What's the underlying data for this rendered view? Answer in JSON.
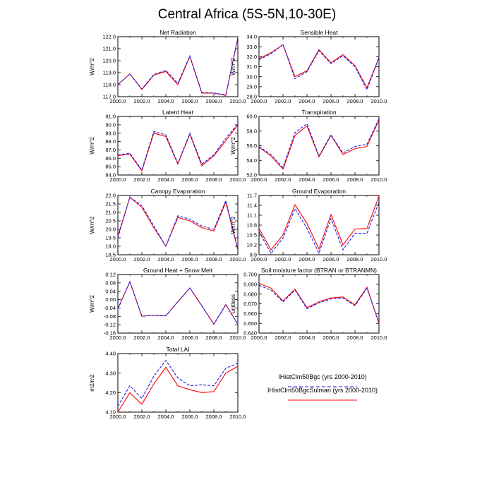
{
  "figure": {
    "title": "Central Africa (5S-5N,10-30E)"
  },
  "legend": {
    "items": [
      {
        "label": "IHistClm50Bgc (yrs 2000-2010)",
        "color": "#1f1fe6",
        "style": "dashed"
      },
      {
        "label": "IHistClm50BgcSulman (yrs 2000-2010)",
        "color": "#ff0000",
        "style": "solid"
      }
    ]
  },
  "chart_data": [
    {
      "type": "line",
      "title": "Net Radiation",
      "ylabel": "W/m^2",
      "x": [
        2000,
        2001,
        2002,
        2003,
        2004,
        2005,
        2006,
        2007,
        2008,
        2009,
        2010
      ],
      "xlim": [
        2000,
        2010
      ],
      "xticks": [
        2000,
        2002,
        2004,
        2006,
        2008,
        2010
      ],
      "xticklabels": [
        "2000.0",
        "2002.0",
        "2004.0",
        "2006.0",
        "2008.0",
        "2010.0"
      ],
      "ylim": [
        117.0,
        122.0
      ],
      "yticks": [
        117,
        118,
        119,
        120,
        121,
        122
      ],
      "yticklabels": [
        "117.0",
        "118.0",
        "119.0",
        "120.0",
        "121.0",
        "122.0"
      ],
      "series": [
        {
          "name": "IHistClm50Bgc (yrs 2000-2010)",
          "color": "#1f1fe6",
          "dash": true,
          "values": [
            118.0,
            118.9,
            117.65,
            118.85,
            119.2,
            118.1,
            120.4,
            117.35,
            117.3,
            117.15,
            121.9
          ]
        },
        {
          "name": "IHistClm50BgcSulman (yrs 2000-2010)",
          "color": "#ff0000",
          "dash": false,
          "values": [
            118.0,
            118.9,
            117.6,
            118.8,
            119.1,
            118.0,
            120.35,
            117.3,
            117.3,
            117.1,
            121.9
          ]
        }
      ]
    },
    {
      "type": "line",
      "title": "Sensible Heat",
      "ylabel": "W/m^2",
      "x": [
        2000,
        2001,
        2002,
        2003,
        2004,
        2005,
        2006,
        2007,
        2008,
        2009,
        2010
      ],
      "xlim": [
        2000,
        2010
      ],
      "xticks": [
        2000,
        2002,
        2004,
        2006,
        2008,
        2010
      ],
      "xticklabels": [
        "2000.0",
        "2002.0",
        "2004.0",
        "2006.0",
        "2008.0",
        "2010.0"
      ],
      "ylim": [
        28.0,
        34.0
      ],
      "yticks": [
        28,
        29,
        30,
        31,
        32,
        33,
        34
      ],
      "yticklabels": [
        "28.0",
        "29.0",
        "30.0",
        "31.0",
        "32.0",
        "33.0",
        "34.0"
      ],
      "series": [
        {
          "name": "IHistClm50Bgc (yrs 2000-2010)",
          "color": "#1f1fe6",
          "dash": true,
          "values": [
            31.7,
            32.3,
            33.2,
            29.8,
            30.5,
            32.6,
            31.3,
            32.1,
            31.0,
            28.7,
            31.9
          ]
        },
        {
          "name": "IHistClm50BgcSulman (yrs 2000-2010)",
          "color": "#ff0000",
          "dash": false,
          "values": [
            31.8,
            32.4,
            33.2,
            30.0,
            30.6,
            32.7,
            31.4,
            32.2,
            31.1,
            28.9,
            31.9
          ]
        }
      ]
    },
    {
      "type": "line",
      "title": "Latent Heat",
      "ylabel": "W/m^2",
      "x": [
        2000,
        2001,
        2002,
        2003,
        2004,
        2005,
        2006,
        2007,
        2008,
        2009,
        2010
      ],
      "xlim": [
        2000,
        2010
      ],
      "xticks": [
        2000,
        2002,
        2004,
        2006,
        2008,
        2010
      ],
      "xticklabels": [
        "2000.0",
        "2002.0",
        "2004.0",
        "2006.0",
        "2008.0",
        "2010.0"
      ],
      "ylim": [
        84.0,
        91.0
      ],
      "yticks": [
        84,
        85,
        86,
        87,
        88,
        89,
        90,
        91
      ],
      "yticklabels": [
        "84.0",
        "85.0",
        "86.0",
        "87.0",
        "88.0",
        "89.0",
        "90.0",
        "91.0"
      ],
      "series": [
        {
          "name": "IHistClm50Bgc (yrs 2000-2010)",
          "color": "#1f1fe6",
          "dash": true,
          "values": [
            86.4,
            86.6,
            84.6,
            89.2,
            88.8,
            85.4,
            89.0,
            85.3,
            86.4,
            88.4,
            90.1
          ]
        },
        {
          "name": "IHistClm50BgcSulman (yrs 2000-2010)",
          "color": "#ff0000",
          "dash": false,
          "values": [
            86.3,
            86.5,
            84.5,
            89.0,
            88.6,
            85.3,
            88.9,
            85.1,
            86.3,
            88.1,
            90.0
          ]
        }
      ]
    },
    {
      "type": "line",
      "title": "Transpiration",
      "ylabel": "W/m^2",
      "x": [
        2000,
        2001,
        2002,
        2003,
        2004,
        2005,
        2006,
        2007,
        2008,
        2009,
        2010
      ],
      "xlim": [
        2000,
        2010
      ],
      "xticks": [
        2000,
        2002,
        2004,
        2006,
        2008,
        2010
      ],
      "xticklabels": [
        "2000.0",
        "2002.0",
        "2004.0",
        "2006.0",
        "2008.0",
        "2010.0"
      ],
      "ylim": [
        52.0,
        60.0
      ],
      "yticks": [
        52,
        54,
        56,
        58,
        60
      ],
      "yticklabels": [
        "52.0",
        "54.0",
        "56.0",
        "58.0",
        "60.0"
      ],
      "series": [
        {
          "name": "IHistClm50Bgc (yrs 2000-2010)",
          "color": "#1f1fe6",
          "dash": true,
          "values": [
            55.9,
            54.8,
            53.0,
            57.8,
            59.0,
            54.6,
            57.5,
            55.0,
            55.9,
            56.2,
            59.7
          ]
        },
        {
          "name": "IHistClm50BgcSulman (yrs 2000-2010)",
          "color": "#ff0000",
          "dash": false,
          "values": [
            55.8,
            54.6,
            52.8,
            57.4,
            58.7,
            54.5,
            57.4,
            54.8,
            55.6,
            55.9,
            59.5
          ]
        }
      ]
    },
    {
      "type": "line",
      "title": "Canopy Evaporation",
      "ylabel": "W/m^2",
      "x": [
        2000,
        2001,
        2002,
        2003,
        2004,
        2005,
        2006,
        2007,
        2008,
        2009,
        2010
      ],
      "xlim": [
        2000,
        2010
      ],
      "xticks": [
        2000,
        2002,
        2004,
        2006,
        2008,
        2010
      ],
      "xticklabels": [
        "2000.0",
        "2002.0",
        "2004.0",
        "2006.0",
        "2008.0",
        "2010.0"
      ],
      "ylim": [
        18.5,
        22.0
      ],
      "yticks": [
        18.5,
        19.0,
        19.5,
        20.0,
        20.5,
        21.0,
        21.5,
        22.0
      ],
      "yticklabels": [
        "18.5",
        "19.0",
        "19.5",
        "20.0",
        "20.5",
        "21.0",
        "21.5",
        "22.0"
      ],
      "series": [
        {
          "name": "IHistClm50Bgc (yrs 2000-2010)",
          "color": "#1f1fe6",
          "dash": true,
          "values": [
            19.5,
            21.9,
            21.4,
            20.2,
            19.0,
            20.8,
            20.6,
            20.2,
            20.0,
            21.7,
            18.8
          ]
        },
        {
          "name": "IHistClm50BgcSulman (yrs 2000-2010)",
          "color": "#ff0000",
          "dash": false,
          "values": [
            19.6,
            21.9,
            21.3,
            20.1,
            19.0,
            20.7,
            20.5,
            20.1,
            19.9,
            21.6,
            18.8
          ]
        }
      ]
    },
    {
      "type": "line",
      "title": "Ground Evaporation",
      "ylabel": "W/m^2",
      "x": [
        2000,
        2001,
        2002,
        2003,
        2004,
        2005,
        2006,
        2007,
        2008,
        2009,
        2010
      ],
      "xlim": [
        2000,
        2010
      ],
      "xticks": [
        2000,
        2002,
        2004,
        2006,
        2008,
        2010
      ],
      "xticklabels": [
        "2000.0",
        "2002.0",
        "2004.0",
        "2006.0",
        "2008.0",
        "2010.0"
      ],
      "ylim": [
        9.9,
        11.7
      ],
      "yticks": [
        9.9,
        10.2,
        10.5,
        10.8,
        11.1,
        11.4,
        11.7
      ],
      "yticklabels": [
        "9.9",
        "10.2",
        "10.5",
        "10.8",
        "11.1",
        "11.4",
        "11.7"
      ],
      "series": [
        {
          "name": "IHistClm50Bgc (yrs 2000-2010)",
          "color": "#1f1fe6",
          "dash": true,
          "values": [
            10.6,
            9.95,
            10.4,
            11.3,
            10.7,
            9.95,
            11.0,
            10.05,
            10.55,
            10.55,
            11.5
          ]
        },
        {
          "name": "IHistClm50BgcSulman (yrs 2000-2010)",
          "color": "#ff0000",
          "dash": false,
          "values": [
            10.7,
            10.05,
            10.5,
            11.42,
            10.85,
            10.07,
            11.12,
            10.2,
            10.68,
            10.7,
            11.68
          ]
        }
      ]
    },
    {
      "type": "line",
      "title": "Ground Heat + Snow Melt",
      "ylabel": "W/m^2",
      "x": [
        2000,
        2001,
        2002,
        2003,
        2004,
        2005,
        2006,
        2007,
        2008,
        2009,
        2010
      ],
      "xlim": [
        2000,
        2010
      ],
      "xticks": [
        2000,
        2002,
        2004,
        2006,
        2008,
        2010
      ],
      "xticklabels": [
        "2000.0",
        "2002.0",
        "2004.0",
        "2006.0",
        "2008.0",
        "2010.0"
      ],
      "ylim": [
        -0.16,
        0.12
      ],
      "yticks": [
        -0.16,
        -0.12,
        -0.08,
        -0.04,
        0.0,
        0.04,
        0.08,
        0.12
      ],
      "yticklabels": [
        "-0.16",
        "-0.12",
        "-0.08",
        "-0.04",
        "0.00",
        "0.04",
        "0.08",
        "0.12"
      ],
      "series": [
        {
          "name": "IHistClm50Bgc (yrs 2000-2010)",
          "color": "#1f1fe6",
          "dash": true,
          "values": [
            -0.045,
            0.085,
            -0.08,
            -0.075,
            -0.078,
            -0.01,
            0.055,
            -0.03,
            -0.118,
            -0.025,
            -0.118
          ]
        },
        {
          "name": "IHistClm50BgcSulman (yrs 2000-2010)",
          "color": "#ff0000",
          "dash": false,
          "values": [
            -0.043,
            0.086,
            -0.079,
            -0.074,
            -0.077,
            -0.01,
            0.056,
            -0.029,
            -0.117,
            -0.024,
            -0.117
          ]
        }
      ]
    },
    {
      "type": "line",
      "title": "Soil moisture factor (BTRAN or BTRANMN)",
      "ylabel": "unitless",
      "x": [
        2000,
        2001,
        2002,
        2003,
        2004,
        2005,
        2006,
        2007,
        2008,
        2009,
        2010
      ],
      "xlim": [
        2000,
        2010
      ],
      "xticks": [
        2000,
        2002,
        2004,
        2006,
        2008,
        2010
      ],
      "xticklabels": [
        "2000.0",
        "2002.0",
        "2004.0",
        "2006.0",
        "2008.0",
        "2010.0"
      ],
      "ylim": [
        0.64,
        0.7
      ],
      "yticks": [
        0.64,
        0.65,
        0.66,
        0.67,
        0.68,
        0.69,
        0.7
      ],
      "yticklabels": [
        "0.640",
        "0.650",
        "0.660",
        "0.670",
        "0.680",
        "0.690",
        "0.700"
      ],
      "series": [
        {
          "name": "IHistClm50Bgc (yrs 2000-2010)",
          "color": "#1f1fe6",
          "dash": true,
          "values": [
            0.689,
            0.684,
            0.672,
            0.684,
            0.665,
            0.671,
            0.675,
            0.676,
            0.668,
            0.686,
            0.65
          ]
        },
        {
          "name": "IHistClm50BgcSulman (yrs 2000-2010)",
          "color": "#ff0000",
          "dash": false,
          "values": [
            0.691,
            0.686,
            0.673,
            0.685,
            0.666,
            0.672,
            0.676,
            0.677,
            0.669,
            0.687,
            0.65
          ]
        }
      ]
    },
    {
      "type": "line",
      "title": "Total LAI",
      "ylabel": "m2/m2",
      "x": [
        2000,
        2001,
        2002,
        2003,
        2004,
        2005,
        2006,
        2007,
        2008,
        2009,
        2010
      ],
      "xlim": [
        2000,
        2010
      ],
      "xticks": [
        2000,
        2002,
        2004,
        2006,
        2008,
        2010
      ],
      "xticklabels": [
        "2000.0",
        "2002.0",
        "2004.0",
        "2006.0",
        "2008.0",
        "2010.0"
      ],
      "ylim": [
        4.1,
        4.4
      ],
      "yticks": [
        4.1,
        4.2,
        4.3,
        4.4
      ],
      "yticklabels": [
        "4.10",
        "4.20",
        "4.30",
        "4.40"
      ],
      "series": [
        {
          "name": "IHistClm50Bgc (yrs 2000-2010)",
          "color": "#1f1fe6",
          "dash": true,
          "values": [
            4.13,
            4.235,
            4.17,
            4.285,
            4.365,
            4.275,
            4.235,
            4.24,
            4.235,
            4.325,
            4.35
          ]
        },
        {
          "name": "IHistClm50BgcSulman (yrs 2000-2010)",
          "color": "#ff0000",
          "dash": false,
          "values": [
            4.1,
            4.2,
            4.14,
            4.245,
            4.33,
            4.235,
            4.215,
            4.2,
            4.205,
            4.3,
            4.335
          ]
        }
      ]
    }
  ]
}
